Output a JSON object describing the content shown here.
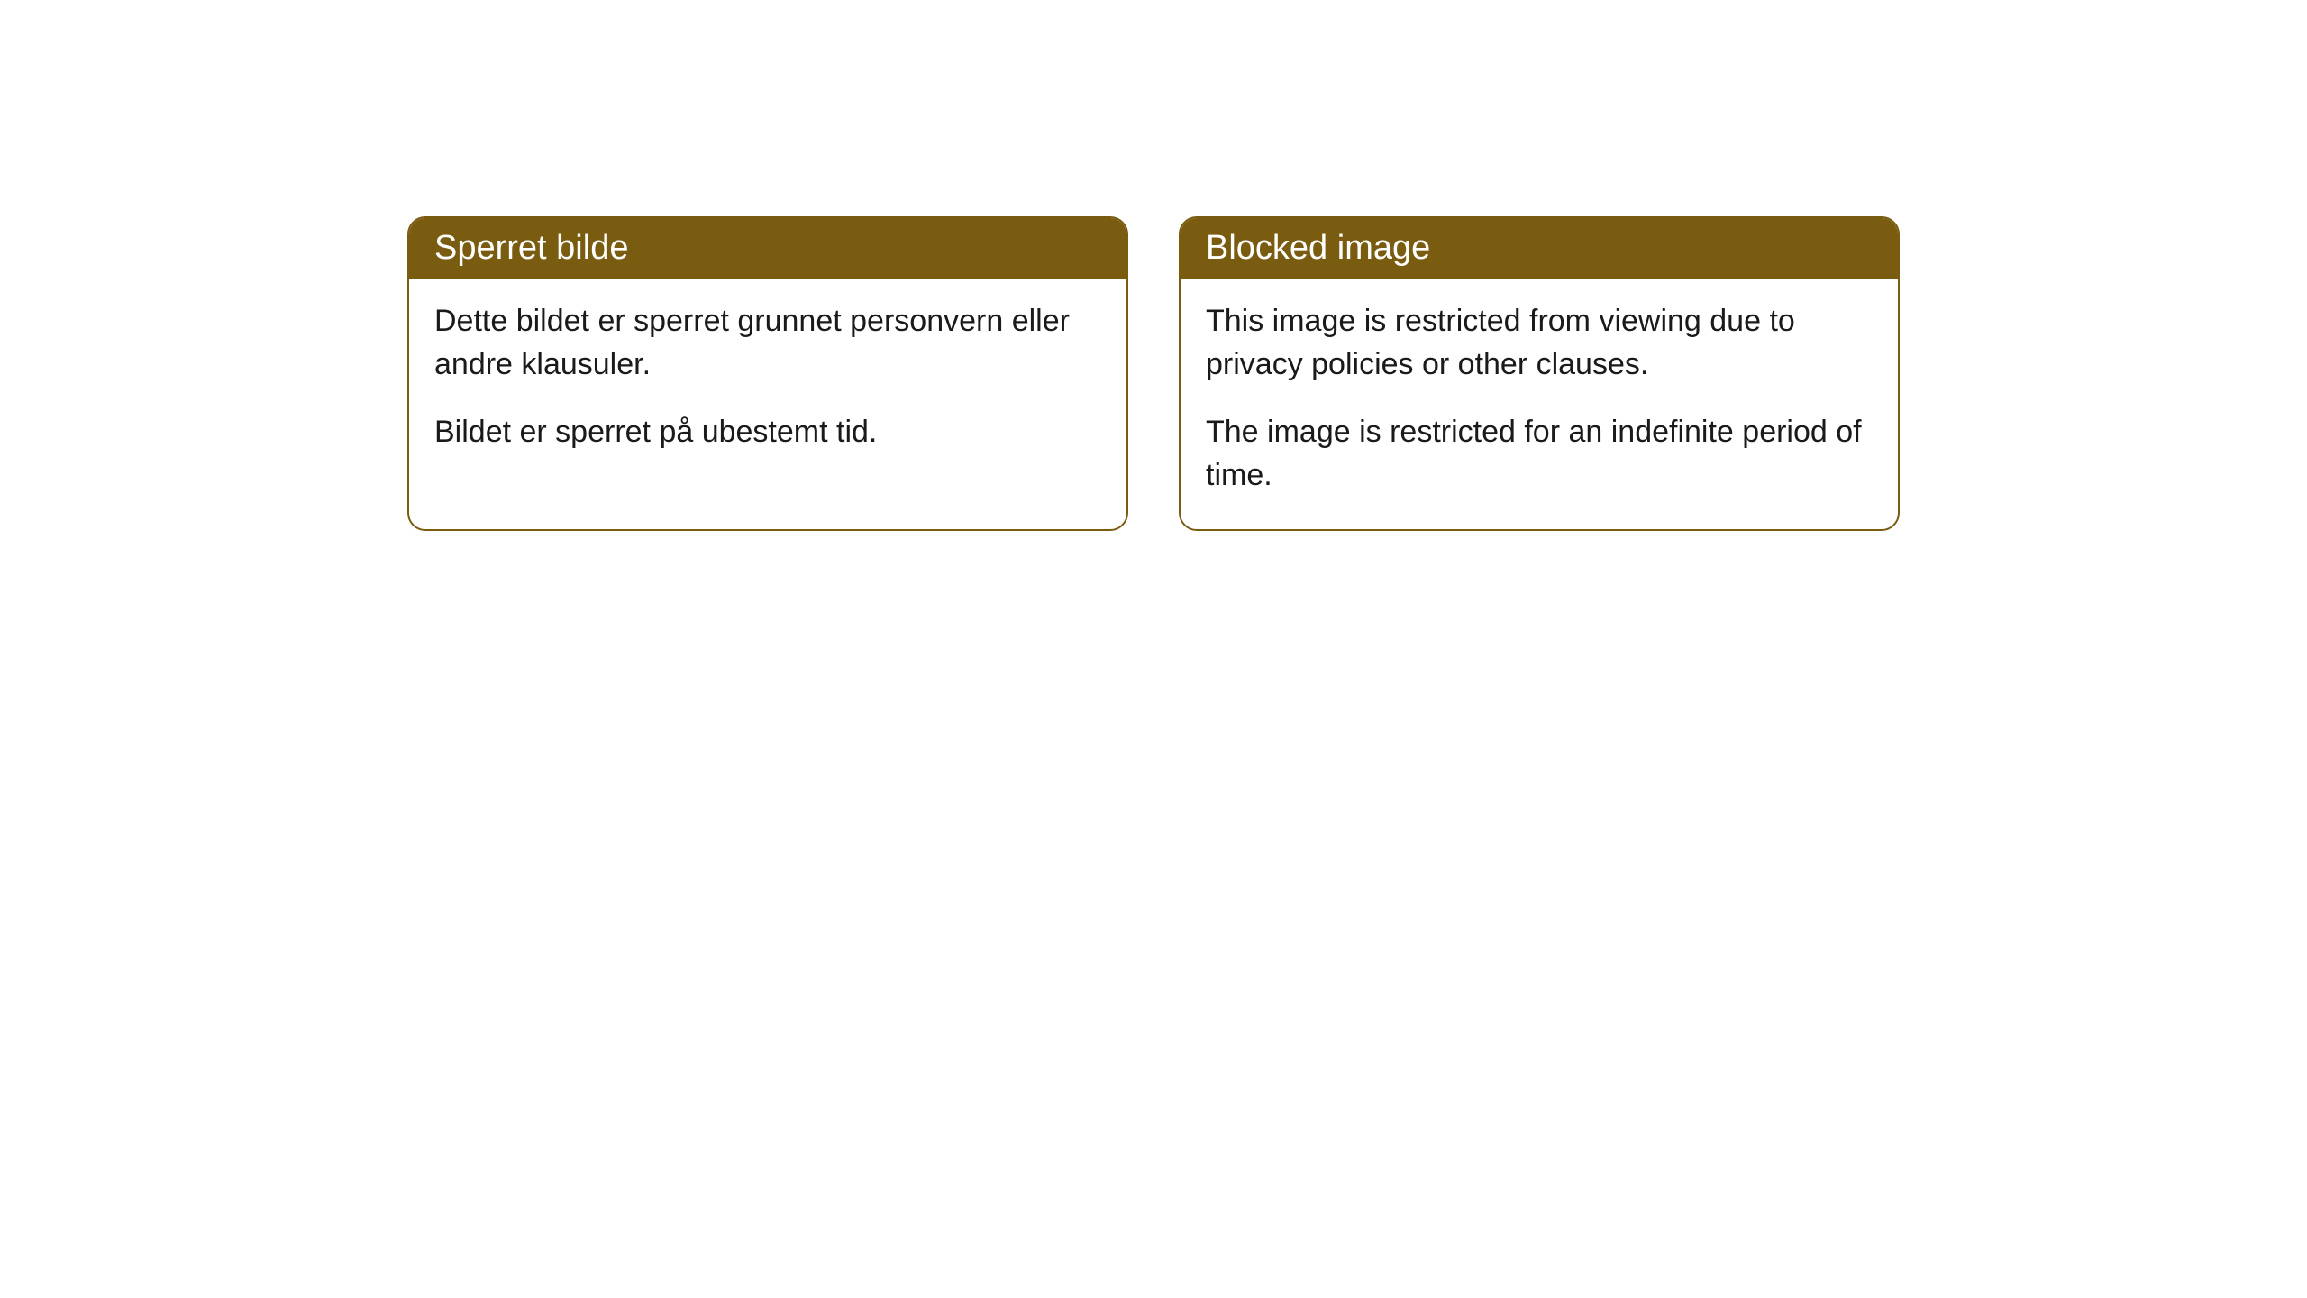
{
  "cards": [
    {
      "title": "Sperret bilde",
      "paragraph1": "Dette bildet er sperret grunnet personvern eller andre klausuler.",
      "paragraph2": "Bildet er sperret på ubestemt tid."
    },
    {
      "title": "Blocked image",
      "paragraph1": "This image is restricted from viewing due to privacy policies or other clauses.",
      "paragraph2": "The image is restricted for an indefinite period of time."
    }
  ],
  "styling": {
    "header_background_color": "#7a5c11",
    "header_text_color": "#ffffff",
    "border_color": "#7a5c11",
    "card_background_color": "#ffffff",
    "body_text_color": "#1a1a1a",
    "border_radius": 20,
    "header_fontsize": 38,
    "body_fontsize": 34
  }
}
